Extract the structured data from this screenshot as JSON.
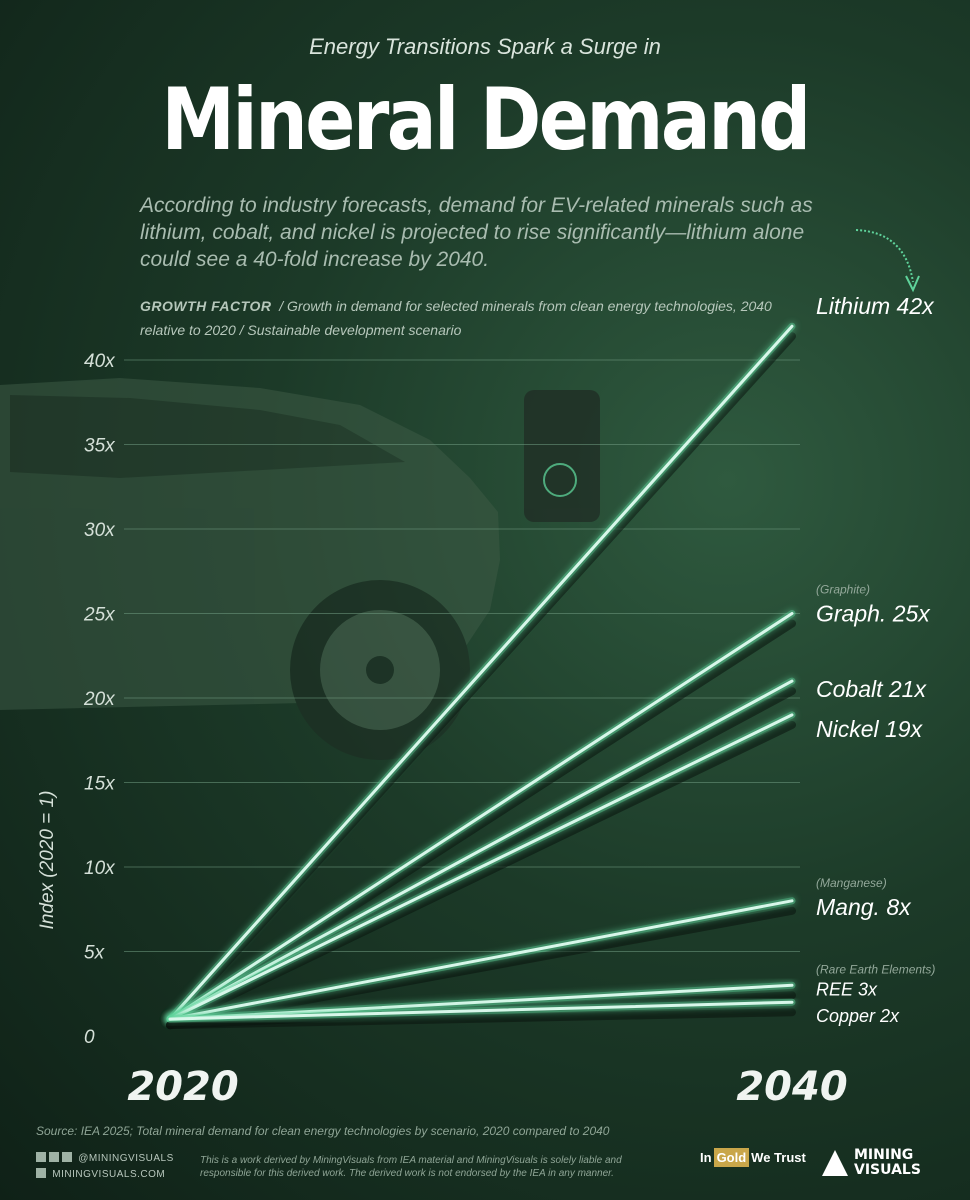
{
  "header": {
    "kicker": "Energy Transitions Spark a Surge in",
    "title": "Mineral Demand",
    "intro": "According to industry forecasts, demand for EV-related minerals such as lithium, cobalt, and nickel is projected to rise significantly—lithium alone could see a 40-fold increase by 2040.",
    "growth_factor_label": "GROWTH FACTOR",
    "growth_factor_text": "/  Growth in demand for selected minerals from clean energy technologies, 2040 relative to 2020  / Sustainable development scenario"
  },
  "colors": {
    "line": "#d8f7ea",
    "glow": "#5fd39b",
    "grid": "#6f9a80"
  },
  "chart_data": {
    "type": "line",
    "x": [
      2020,
      2040
    ],
    "x_tick_labels": [
      "2020",
      "2040"
    ],
    "ylabel": "Index (2020 = 1)",
    "ylim": [
      0,
      40
    ],
    "y_ticks": [
      0,
      5,
      10,
      15,
      20,
      25,
      30,
      35,
      40
    ],
    "y_tick_labels": [
      "0",
      "5x",
      "10x",
      "15x",
      "20x",
      "25x",
      "30x",
      "35x",
      "40x"
    ],
    "grid": true,
    "series": [
      {
        "label": "Lithium 42x",
        "values": [
          1,
          42
        ],
        "sublabel": ""
      },
      {
        "label": "Graph. 25x",
        "values": [
          1,
          25
        ],
        "sublabel": "(Graphite)"
      },
      {
        "label": "Cobalt 21x",
        "values": [
          1,
          21
        ],
        "sublabel": ""
      },
      {
        "label": "Nickel 19x",
        "values": [
          1,
          19
        ],
        "sublabel": ""
      },
      {
        "label": "Mang. 8x",
        "values": [
          1,
          8
        ],
        "sublabel": "(Manganese)"
      },
      {
        "label": "REE 3x",
        "values": [
          1,
          3
        ],
        "sublabel": "(Rare Earth Elements)"
      },
      {
        "label": "Copper 2x",
        "values": [
          1,
          2
        ],
        "sublabel": ""
      }
    ]
  },
  "footer": {
    "source": "Source: IEA 2025; Total mineral demand for clean energy technologies by scenario, 2020 compared to 2040",
    "social_handle": "@MININGVISUALS",
    "website": "MININGVISUALS.COM",
    "disclaimer": "This is a work derived by MiningVisuals from IEA material and MiningVisuals is solely liable and responsible for this derived work. The derived work is not endorsed by the IEA in any manner.",
    "partner_in": "In",
    "partner_gold": "Gold",
    "partner_trust": "We Trust",
    "brand_line1": "MINING",
    "brand_line2": "VISUALS"
  }
}
